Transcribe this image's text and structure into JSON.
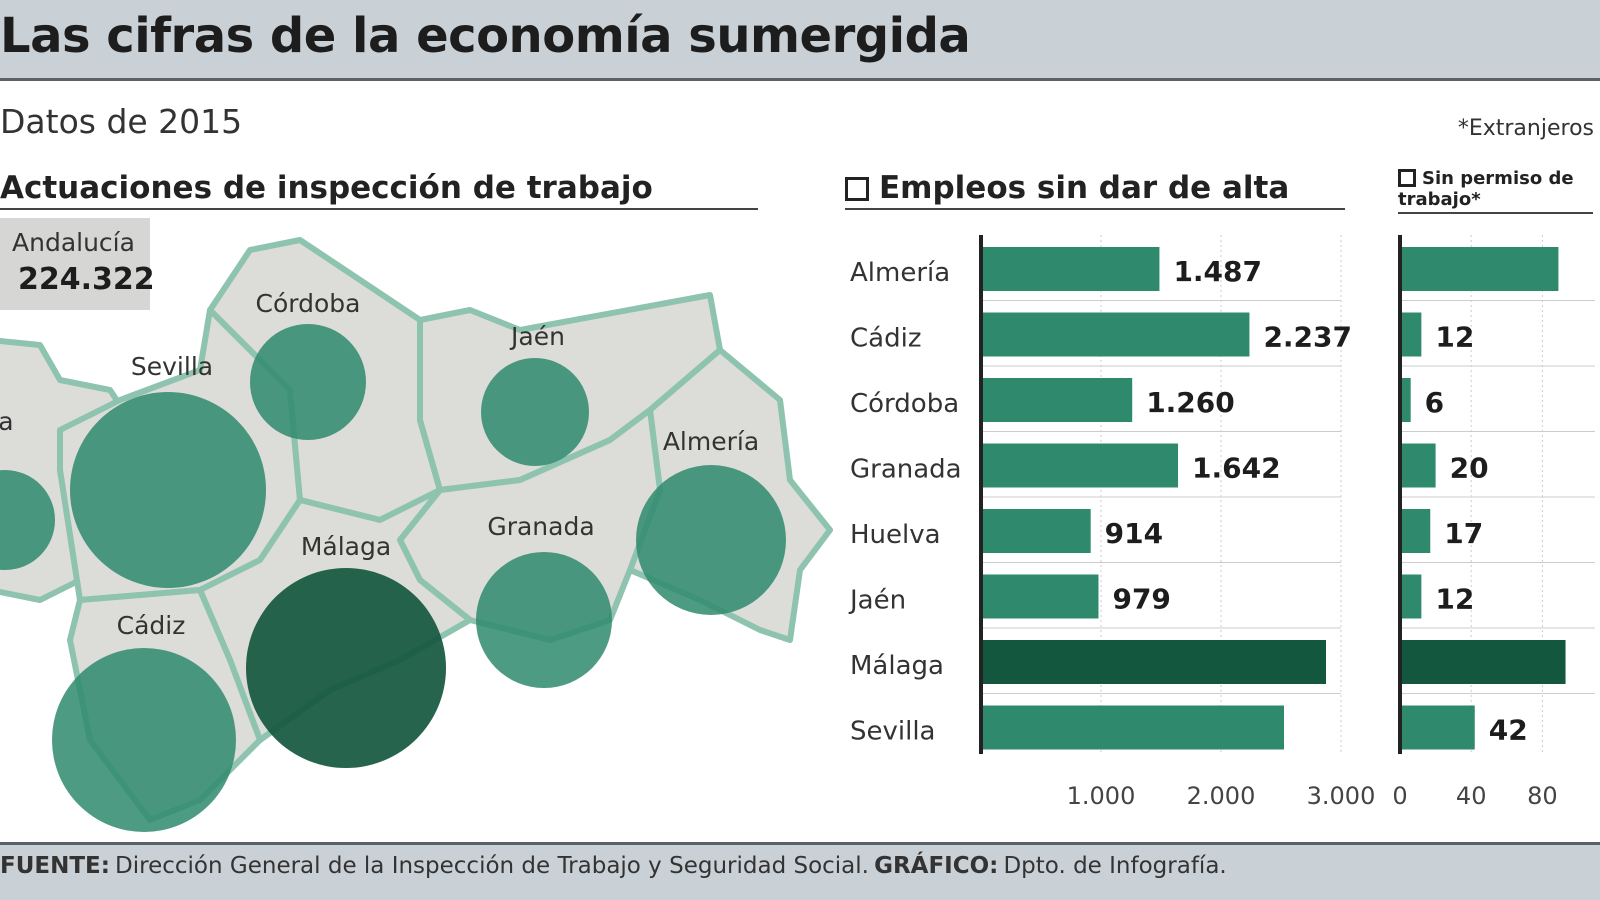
{
  "header": {
    "title": "Las cifras de la economía sumergida"
  },
  "subtitle": "Datos de 2015",
  "note": "*Extranjeros",
  "footer": {
    "source_label": "FUENTE:",
    "source": "Dirección General de la Inspección de Trabajo y Seguridad Social.",
    "graphic_label": "GRÁFICO:",
    "graphic": "Dpto. de Infografía."
  },
  "colors": {
    "bar": "#2f8a6d",
    "highlight": "#14573f",
    "map_fill": "#dcdcd9",
    "map_border": "#8dc3af",
    "header_bg": "#c9d1d6"
  },
  "map": {
    "title": "Actuaciones de inspección de trabajo",
    "total_label": "Andalucía",
    "total_value": "224.322",
    "provinces": [
      {
        "name": "Huelva",
        "label": "Huelva"
      },
      {
        "name": "Sevilla",
        "label": "Sevilla"
      },
      {
        "name": "Córdoba",
        "label": "Córdoba"
      },
      {
        "name": "Jaén",
        "label": "Jaén"
      },
      {
        "name": "Almería",
        "label": "Almería"
      },
      {
        "name": "Granada",
        "label": "Granada"
      },
      {
        "name": "Málaga",
        "label": "Málaga"
      },
      {
        "name": "Cádiz",
        "label": "Cádiz"
      }
    ]
  },
  "chart_data": [
    {
      "type": "bar",
      "orientation": "horizontal",
      "title": "Empleos sin dar de alta",
      "categories": [
        "Almería",
        "Cádiz",
        "Córdoba",
        "Granada",
        "Huelva",
        "Jaén",
        "Málaga",
        "Sevilla"
      ],
      "values": [
        1487,
        2237,
        1260,
        1642,
        914,
        979,
        2875,
        2525
      ],
      "data_labels": [
        "1.487",
        "2.237",
        "1.260",
        "1.642",
        "914",
        "979",
        "",
        ""
      ],
      "highlight": "Málaga",
      "xlim": [
        0,
        3000
      ],
      "ticks": [
        "1.000",
        "2.000",
        "3.000"
      ],
      "tick_values": [
        1000,
        2000,
        3000
      ],
      "grid": true
    },
    {
      "type": "bar",
      "orientation": "horizontal",
      "title": "Sin permiso de trabajo*",
      "categories": [
        "Almería",
        "Cádiz",
        "Córdoba",
        "Granada",
        "Huelva",
        "Jaén",
        "Málaga",
        "Sevilla"
      ],
      "values": [
        89,
        12,
        6,
        20,
        17,
        12,
        93,
        42
      ],
      "data_labels": [
        "",
        "12",
        "6",
        "20",
        "17",
        "12",
        "",
        "42"
      ],
      "highlight": "Málaga",
      "xlim": [
        0,
        120
      ],
      "ticks": [
        "0",
        "40",
        "80"
      ],
      "tick_values": [
        0,
        40,
        80
      ],
      "grid": true
    }
  ]
}
